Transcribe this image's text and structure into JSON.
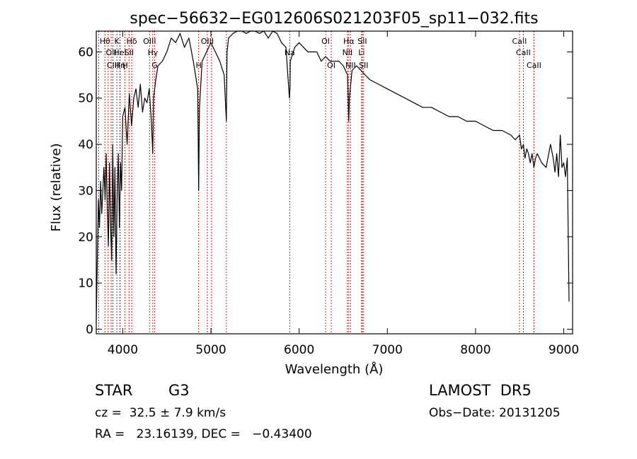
{
  "chart_data": {
    "type": "line",
    "title": "spec−56632−EG012606S021203F05_sp11−032.fits",
    "xlabel": "Wavelength (Å)",
    "ylabel": "Flux (relative)",
    "xlim": [
      3700,
      9100
    ],
    "ylim": [
      -1,
      64.5
    ],
    "xticks": [
      4000,
      5000,
      6000,
      7000,
      8000,
      9000
    ],
    "yticks": [
      0,
      10,
      20,
      30,
      40,
      50,
      60
    ],
    "line_color": "#000000",
    "marker_color": "#cc0000",
    "series": [
      {
        "x": [
          3700,
          3712,
          3725,
          3737,
          3750,
          3762,
          3775,
          3787,
          3800,
          3812,
          3825,
          3837,
          3850,
          3862,
          3875,
          3887,
          3900,
          3912,
          3925,
          3937,
          3950,
          3962,
          3975,
          3987,
          4000,
          4025,
          4050,
          4075,
          4100,
          4125,
          4150,
          4175,
          4200,
          4225,
          4250,
          4275,
          4300,
          4325,
          4340,
          4350,
          4375,
          4400,
          4450,
          4500,
          4550,
          4600,
          4650,
          4700,
          4750,
          4800,
          4850,
          4861,
          4870,
          4900,
          4950,
          5000,
          5050,
          5100,
          5150,
          5175,
          5183,
          5200,
          5250,
          5300,
          5350,
          5400,
          5450,
          5500,
          5550,
          5600,
          5650,
          5700,
          5750,
          5800,
          5850,
          5890,
          5896,
          5900,
          5950,
          6000,
          6050,
          6100,
          6150,
          6200,
          6250,
          6300,
          6350,
          6400,
          6450,
          6500,
          6550,
          6562,
          6570,
          6600,
          6650,
          6700,
          6750,
          6800,
          6900,
          7000,
          7100,
          7200,
          7300,
          7400,
          7500,
          7600,
          7700,
          7800,
          7900,
          8000,
          8100,
          8200,
          8300,
          8400,
          8450,
          8498,
          8520,
          8542,
          8560,
          8580,
          8600,
          8620,
          8640,
          8662,
          8680,
          8700,
          8750,
          8800,
          8850,
          8880,
          8900,
          8920,
          8940,
          8960,
          8980,
          9000,
          9020,
          9040,
          9060
        ],
        "y": [
          2,
          15,
          28,
          22,
          32,
          25,
          30,
          35,
          28,
          38,
          26,
          18,
          36,
          22,
          15,
          40,
          20,
          35,
          12,
          28,
          38,
          22,
          36,
          30,
          46,
          48,
          40,
          51,
          44,
          50,
          52,
          48,
          53,
          47,
          50,
          49,
          52,
          45,
          38,
          50,
          54,
          57,
          58,
          60,
          63,
          62,
          64,
          61,
          63,
          58,
          52,
          30,
          48,
          58,
          60,
          62,
          60,
          58,
          55,
          45,
          60,
          63,
          64,
          65,
          66,
          64,
          65,
          66,
          64,
          66,
          63,
          65,
          64,
          62,
          61,
          50,
          52,
          58,
          61,
          62,
          61,
          60,
          60,
          60,
          58,
          59,
          58,
          58,
          58,
          57,
          55,
          45,
          50,
          56,
          57,
          56,
          55,
          54,
          53,
          52,
          51,
          50,
          49,
          48,
          48,
          47,
          46,
          46,
          45,
          45,
          44,
          43,
          43,
          42,
          41,
          42,
          39,
          40,
          37,
          39,
          38,
          36,
          38,
          35,
          37,
          38,
          36,
          35,
          40,
          37,
          34,
          38,
          33,
          42,
          35,
          36,
          33,
          37,
          6
        ]
      }
    ],
    "line_markers": [
      {
        "x": 3727,
        "row": 0,
        "label": ""
      },
      {
        "x": 3798,
        "row": 0,
        "label": "Hθ"
      },
      {
        "x": 3835,
        "row": 0,
        "label": ""
      },
      {
        "x": 3869,
        "row": 1,
        "label": "OII"
      },
      {
        "x": 3889,
        "row": 2,
        "label": "CIII"
      },
      {
        "x": 3934,
        "row": 0,
        "label": "K"
      },
      {
        "x": 3970,
        "row": 1,
        "label": "HeI"
      },
      {
        "x": 3968,
        "row": 2,
        "label": "Hη"
      },
      {
        "x": 4026,
        "row": 2,
        "label": "H"
      },
      {
        "x": 4072,
        "row": 1,
        "label": "SII"
      },
      {
        "x": 4102,
        "row": 0,
        "label": "Hδ"
      },
      {
        "x": 4304,
        "row": 0,
        "label": "OIII"
      },
      {
        "x": 4341,
        "row": 1,
        "label": "Hγ"
      },
      {
        "x": 4363,
        "row": 2,
        "label": "G"
      },
      {
        "x": 4861,
        "row": 2,
        "label": "H"
      },
      {
        "x": 4959,
        "row": 0,
        "label": "OIII"
      },
      {
        "x": 5007,
        "row": 1,
        "label": ""
      },
      {
        "x": 5175,
        "row": 0,
        "label": ""
      },
      {
        "x": 5893,
        "row": 1,
        "label": "Na"
      },
      {
        "x": 6300,
        "row": 0,
        "label": "OI"
      },
      {
        "x": 6364,
        "row": 2,
        "label": "OI"
      },
      {
        "x": 6548,
        "row": 1,
        "label": "NII"
      },
      {
        "x": 6563,
        "row": 0,
        "label": "Hα"
      },
      {
        "x": 6583,
        "row": 2,
        "label": "NII"
      },
      {
        "x": 6708,
        "row": 1,
        "label": "Li"
      },
      {
        "x": 6716,
        "row": 0,
        "label": "SII"
      },
      {
        "x": 6731,
        "row": 2,
        "label": "SII"
      },
      {
        "x": 8498,
        "row": 0,
        "label": "CaII"
      },
      {
        "x": 8542,
        "row": 1,
        "label": "CaII"
      },
      {
        "x": 8662,
        "row": 2,
        "label": "CaII"
      }
    ]
  },
  "info": {
    "class_label": "STAR",
    "subclass": "G3",
    "redshift": "cz =  32.5 ± 7.9 km/s",
    "coords": "RA =   23.16139, DEC =   −0.43400",
    "survey": "LAMOST  DR5",
    "obs_date": "Obs−Date: 20131205"
  }
}
